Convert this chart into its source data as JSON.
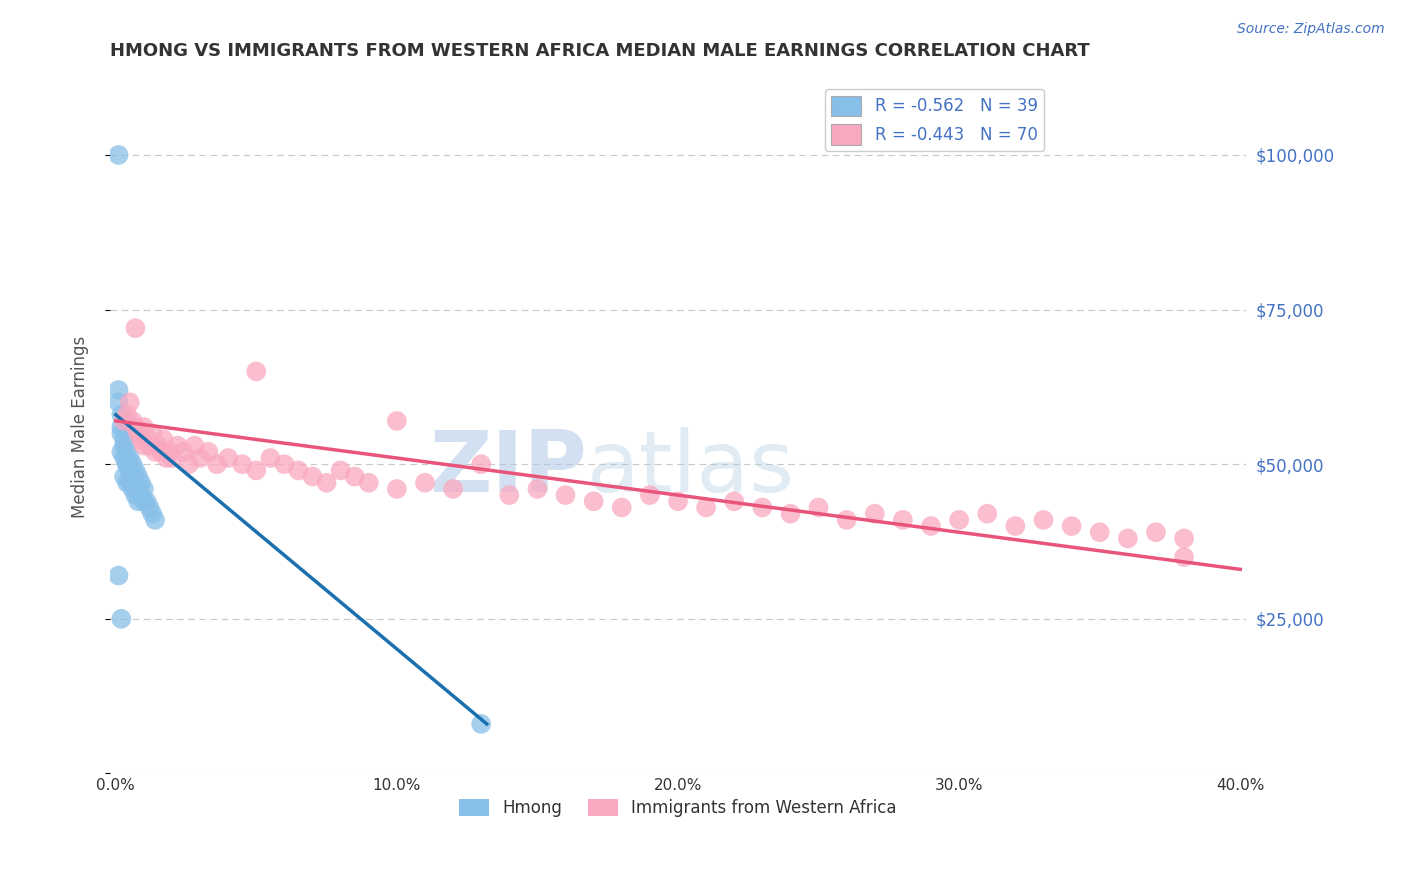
{
  "title": "HMONG VS IMMIGRANTS FROM WESTERN AFRICA MEDIAN MALE EARNINGS CORRELATION CHART",
  "source": "Source: ZipAtlas.com",
  "ylabel": "Median Male Earnings",
  "xlim": [
    -0.002,
    0.402
  ],
  "ylim": [
    0,
    112000
  ],
  "yticks": [
    0,
    25000,
    50000,
    75000,
    100000
  ],
  "ytick_labels": [
    "",
    "$25,000",
    "$50,000",
    "$75,000",
    "$100,000"
  ],
  "xticks": [
    0.0,
    0.1,
    0.2,
    0.3,
    0.4
  ],
  "xtick_labels": [
    "0.0%",
    "10.0%",
    "20.0%",
    "30.0%",
    "40.0%"
  ],
  "legend1_label": "R = -0.562   N = 39",
  "legend2_label": "R = -0.443   N = 70",
  "legend_label1": "Hmong",
  "legend_label2": "Immigrants from Western Africa",
  "color_blue": "#88bfe8",
  "color_pink": "#f9a8c0",
  "color_blue_line": "#1a6faf",
  "color_pink_line": "#e8547a",
  "watermark_zip": "ZIP",
  "watermark_atlas": "atlas",
  "blue_scatter_x": [
    0.001,
    0.001,
    0.002,
    0.002,
    0.002,
    0.003,
    0.003,
    0.003,
    0.004,
    0.004,
    0.004,
    0.005,
    0.005,
    0.005,
    0.006,
    0.006,
    0.006,
    0.007,
    0.007,
    0.007,
    0.008,
    0.008,
    0.009,
    0.009,
    0.01,
    0.01,
    0.011,
    0.012,
    0.013,
    0.014,
    0.001,
    0.002,
    0.003,
    0.004,
    0.006,
    0.008,
    0.001,
    0.13,
    0.002
  ],
  "blue_scatter_y": [
    100000,
    60000,
    58000,
    55000,
    52000,
    54000,
    51000,
    48000,
    52000,
    50000,
    47000,
    51000,
    49000,
    47000,
    50000,
    48000,
    46000,
    49000,
    47000,
    45000,
    48000,
    46000,
    47000,
    45000,
    46000,
    44000,
    44000,
    43000,
    42000,
    41000,
    62000,
    56000,
    53000,
    50000,
    47000,
    44000,
    32000,
    8000,
    25000
  ],
  "pink_scatter_x": [
    0.003,
    0.004,
    0.005,
    0.006,
    0.007,
    0.007,
    0.008,
    0.009,
    0.01,
    0.01,
    0.011,
    0.012,
    0.013,
    0.014,
    0.015,
    0.016,
    0.017,
    0.018,
    0.019,
    0.02,
    0.022,
    0.024,
    0.026,
    0.028,
    0.03,
    0.033,
    0.036,
    0.04,
    0.045,
    0.05,
    0.055,
    0.06,
    0.065,
    0.07,
    0.075,
    0.08,
    0.085,
    0.09,
    0.1,
    0.11,
    0.12,
    0.13,
    0.14,
    0.15,
    0.16,
    0.17,
    0.18,
    0.19,
    0.2,
    0.21,
    0.22,
    0.23,
    0.24,
    0.25,
    0.26,
    0.27,
    0.28,
    0.29,
    0.3,
    0.31,
    0.32,
    0.33,
    0.34,
    0.35,
    0.36,
    0.37,
    0.38,
    0.05,
    0.1,
    0.38
  ],
  "pink_scatter_y": [
    57000,
    58000,
    60000,
    57000,
    56000,
    72000,
    55000,
    54000,
    56000,
    53000,
    54000,
    53000,
    55000,
    52000,
    53000,
    52000,
    54000,
    51000,
    52000,
    51000,
    53000,
    52000,
    50000,
    53000,
    51000,
    52000,
    50000,
    51000,
    50000,
    49000,
    51000,
    50000,
    49000,
    48000,
    47000,
    49000,
    48000,
    47000,
    46000,
    47000,
    46000,
    50000,
    45000,
    46000,
    45000,
    44000,
    43000,
    45000,
    44000,
    43000,
    44000,
    43000,
    42000,
    43000,
    41000,
    42000,
    41000,
    40000,
    41000,
    42000,
    40000,
    41000,
    40000,
    39000,
    38000,
    39000,
    38000,
    65000,
    57000,
    35000
  ],
  "blue_line_x": [
    0.0,
    0.132
  ],
  "blue_line_y": [
    58000,
    8000
  ],
  "pink_line_x": [
    0.0,
    0.4
  ],
  "pink_line_y": [
    57000,
    33000
  ],
  "title_color": "#333333",
  "axis_label_color": "#555555",
  "tick_color_right": "#4472c4",
  "grid_color": "#c8c8c8",
  "background_color": "#ffffff"
}
